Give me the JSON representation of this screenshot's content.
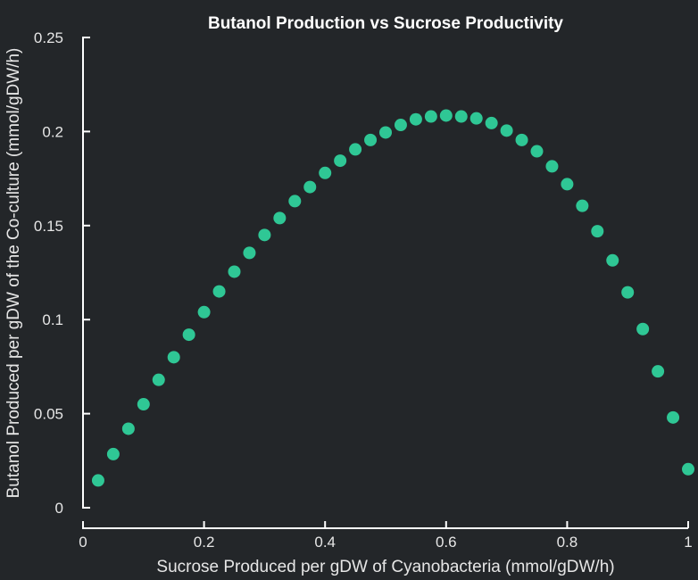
{
  "chart_data": {
    "type": "scatter",
    "title": "Butanol Production vs Sucrose Productivity",
    "xlabel": "Sucrose Produced per gDW of Cyanobacteria (mmol/gDW/h)",
    "ylabel": "Butanol Produced per gDW of the Co-culture (mmol/gDW/h)",
    "xlim": [
      0,
      1
    ],
    "ylim": [
      0,
      0.25
    ],
    "xticks": [
      "0",
      "0.2",
      "0.4",
      "0.6",
      "0.8",
      "1"
    ],
    "yticks": [
      "0",
      "0.05",
      "0.1",
      "0.15",
      "0.2",
      "0.25"
    ],
    "grid": false,
    "marker_color": "#2fc795",
    "background_color": "#232629",
    "x": [
      0.025,
      0.05,
      0.075,
      0.1,
      0.125,
      0.15,
      0.175,
      0.2,
      0.225,
      0.25,
      0.275,
      0.3,
      0.325,
      0.35,
      0.375,
      0.4,
      0.425,
      0.45,
      0.475,
      0.5,
      0.525,
      0.55,
      0.575,
      0.6,
      0.625,
      0.65,
      0.675,
      0.7,
      0.725,
      0.75,
      0.775,
      0.8,
      0.825,
      0.85,
      0.875,
      0.9,
      0.925,
      0.95,
      0.975,
      1.0
    ],
    "y": [
      0.0145,
      0.0285,
      0.042,
      0.055,
      0.068,
      0.08,
      0.092,
      0.104,
      0.115,
      0.1255,
      0.1355,
      0.145,
      0.154,
      0.163,
      0.1705,
      0.178,
      0.1845,
      0.1905,
      0.1955,
      0.1995,
      0.2035,
      0.2065,
      0.208,
      0.2085,
      0.208,
      0.207,
      0.2045,
      0.2005,
      0.1955,
      0.1895,
      0.1815,
      0.172,
      0.1605,
      0.147,
      0.1315,
      0.1145,
      0.095,
      0.0725,
      0.048,
      0.0205
    ]
  }
}
